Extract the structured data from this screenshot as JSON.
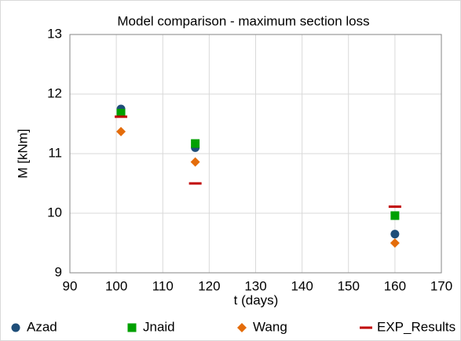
{
  "chart_data": {
    "type": "scatter",
    "title": "Model comparison - maximum section loss",
    "xlabel": "t (days)",
    "ylabel": "M [kNm]",
    "xlim": [
      90,
      170
    ],
    "xticks": [
      90,
      100,
      110,
      120,
      130,
      140,
      150,
      160,
      170
    ],
    "ylim": [
      9,
      13
    ],
    "yticks": [
      9,
      10,
      11,
      12,
      13
    ],
    "grid": true,
    "legend": "bottom",
    "series": [
      {
        "name": "Azad",
        "color": "#1f4e79",
        "marker": "circle",
        "x": [
          101,
          117,
          160
        ],
        "values": [
          11.75,
          11.1,
          9.65
        ]
      },
      {
        "name": "Jnaid",
        "color": "#00a000",
        "marker": "square",
        "x": [
          101,
          117,
          160
        ],
        "values": [
          11.68,
          11.17,
          9.96
        ]
      },
      {
        "name": "Wang",
        "color": "#e46c0a",
        "marker": "diamond",
        "x": [
          101,
          117,
          160
        ],
        "values": [
          11.37,
          10.86,
          9.5
        ]
      },
      {
        "name": "EXP_Results",
        "color": "#c00000",
        "marker": "dash",
        "x": [
          101,
          117,
          160
        ],
        "values": [
          11.62,
          10.5,
          10.11
        ]
      }
    ]
  }
}
